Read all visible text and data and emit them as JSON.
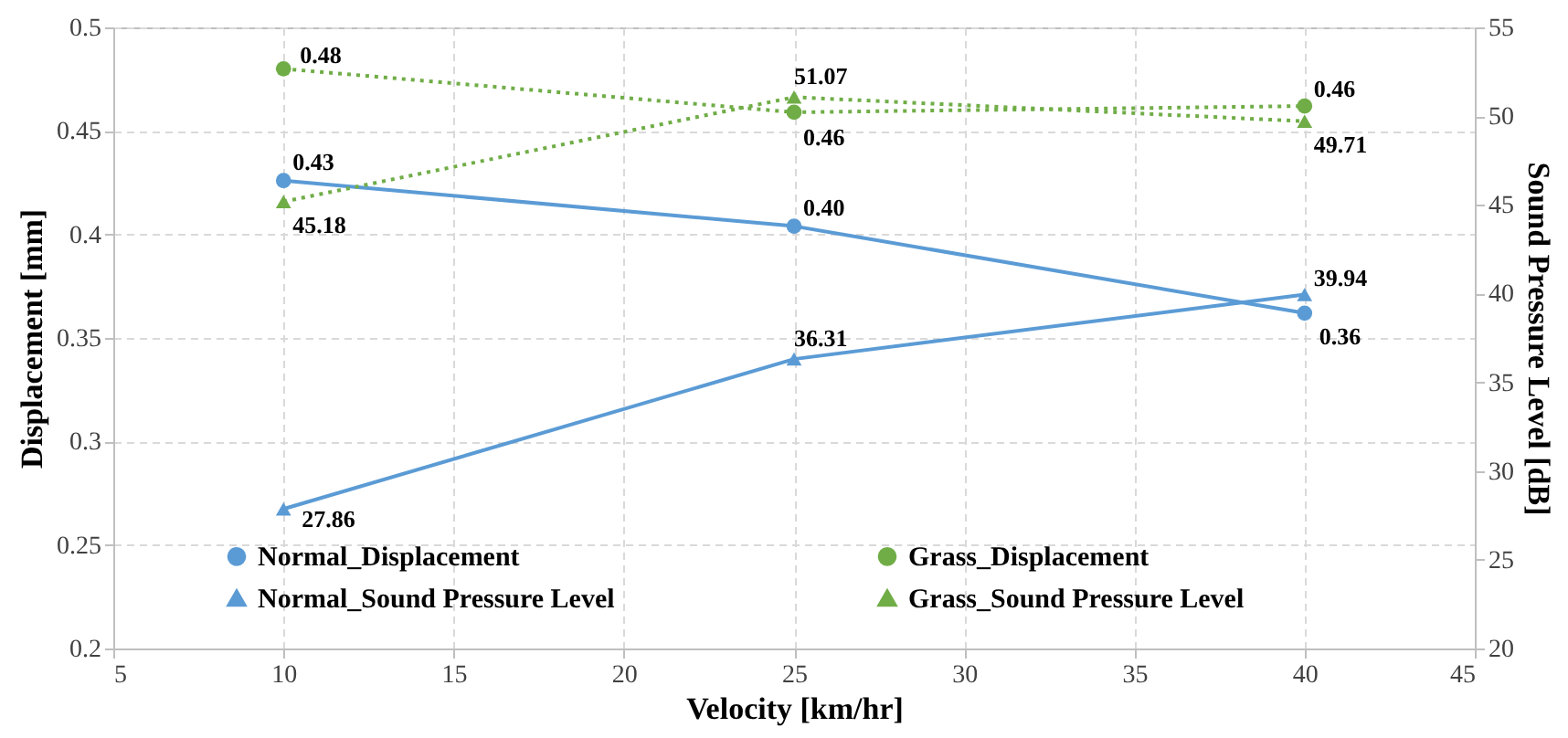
{
  "chart_data": {
    "type": "line",
    "xlabel": "Velocity [km/hr]",
    "ylabel": "Displacement [mm]",
    "y2label": "Sound Pressure Level [dB]",
    "x": [
      10,
      25,
      40
    ],
    "series": [
      {
        "name": "Normal_Displacement",
        "color": "#5b9bd5",
        "values": [
          0.426,
          0.404,
          0.362
        ],
        "value_labels": [
          "0.43",
          "0.40",
          "0.36"
        ],
        "marker": "circle",
        "line_style": "solid"
      },
      {
        "name": "Grass_Displacement",
        "color": "#70ad47",
        "values": [
          0.48,
          0.459,
          0.462
        ],
        "value_labels": [
          "0.48",
          "0.46",
          "0.46"
        ],
        "marker": "circle",
        "line_style": "dotted"
      },
      {
        "name": "Normal_Sound Pressure Level",
        "color": "#5b9bd5",
        "values": [
          27.86,
          36.31,
          39.94
        ],
        "value_labels": [
          "27.86",
          "36.31",
          "39.94"
        ],
        "marker": "triangle",
        "line_style": "solid",
        "axis": "y2"
      },
      {
        "name": "Grass_Sound Pressure Level",
        "color": "#70ad47",
        "values": [
          45.18,
          51.07,
          49.71
        ],
        "value_labels": [
          "45.18",
          "51.07",
          "49.71"
        ],
        "marker": "triangle",
        "line_style": "dotted",
        "axis": "y2"
      }
    ],
    "xlim": [
      5,
      45
    ],
    "xticks": [
      5,
      10,
      15,
      20,
      25,
      30,
      35,
      40,
      45
    ],
    "ylim": [
      0.2,
      0.5
    ],
    "yticks": [
      0.2,
      0.25,
      0.3,
      0.35,
      0.4,
      0.45,
      0.5
    ],
    "y2lim": [
      20,
      55
    ],
    "y2ticks": [
      20,
      25,
      30,
      35,
      40,
      45,
      50,
      55
    ],
    "grid": true,
    "legend": "bottom"
  }
}
